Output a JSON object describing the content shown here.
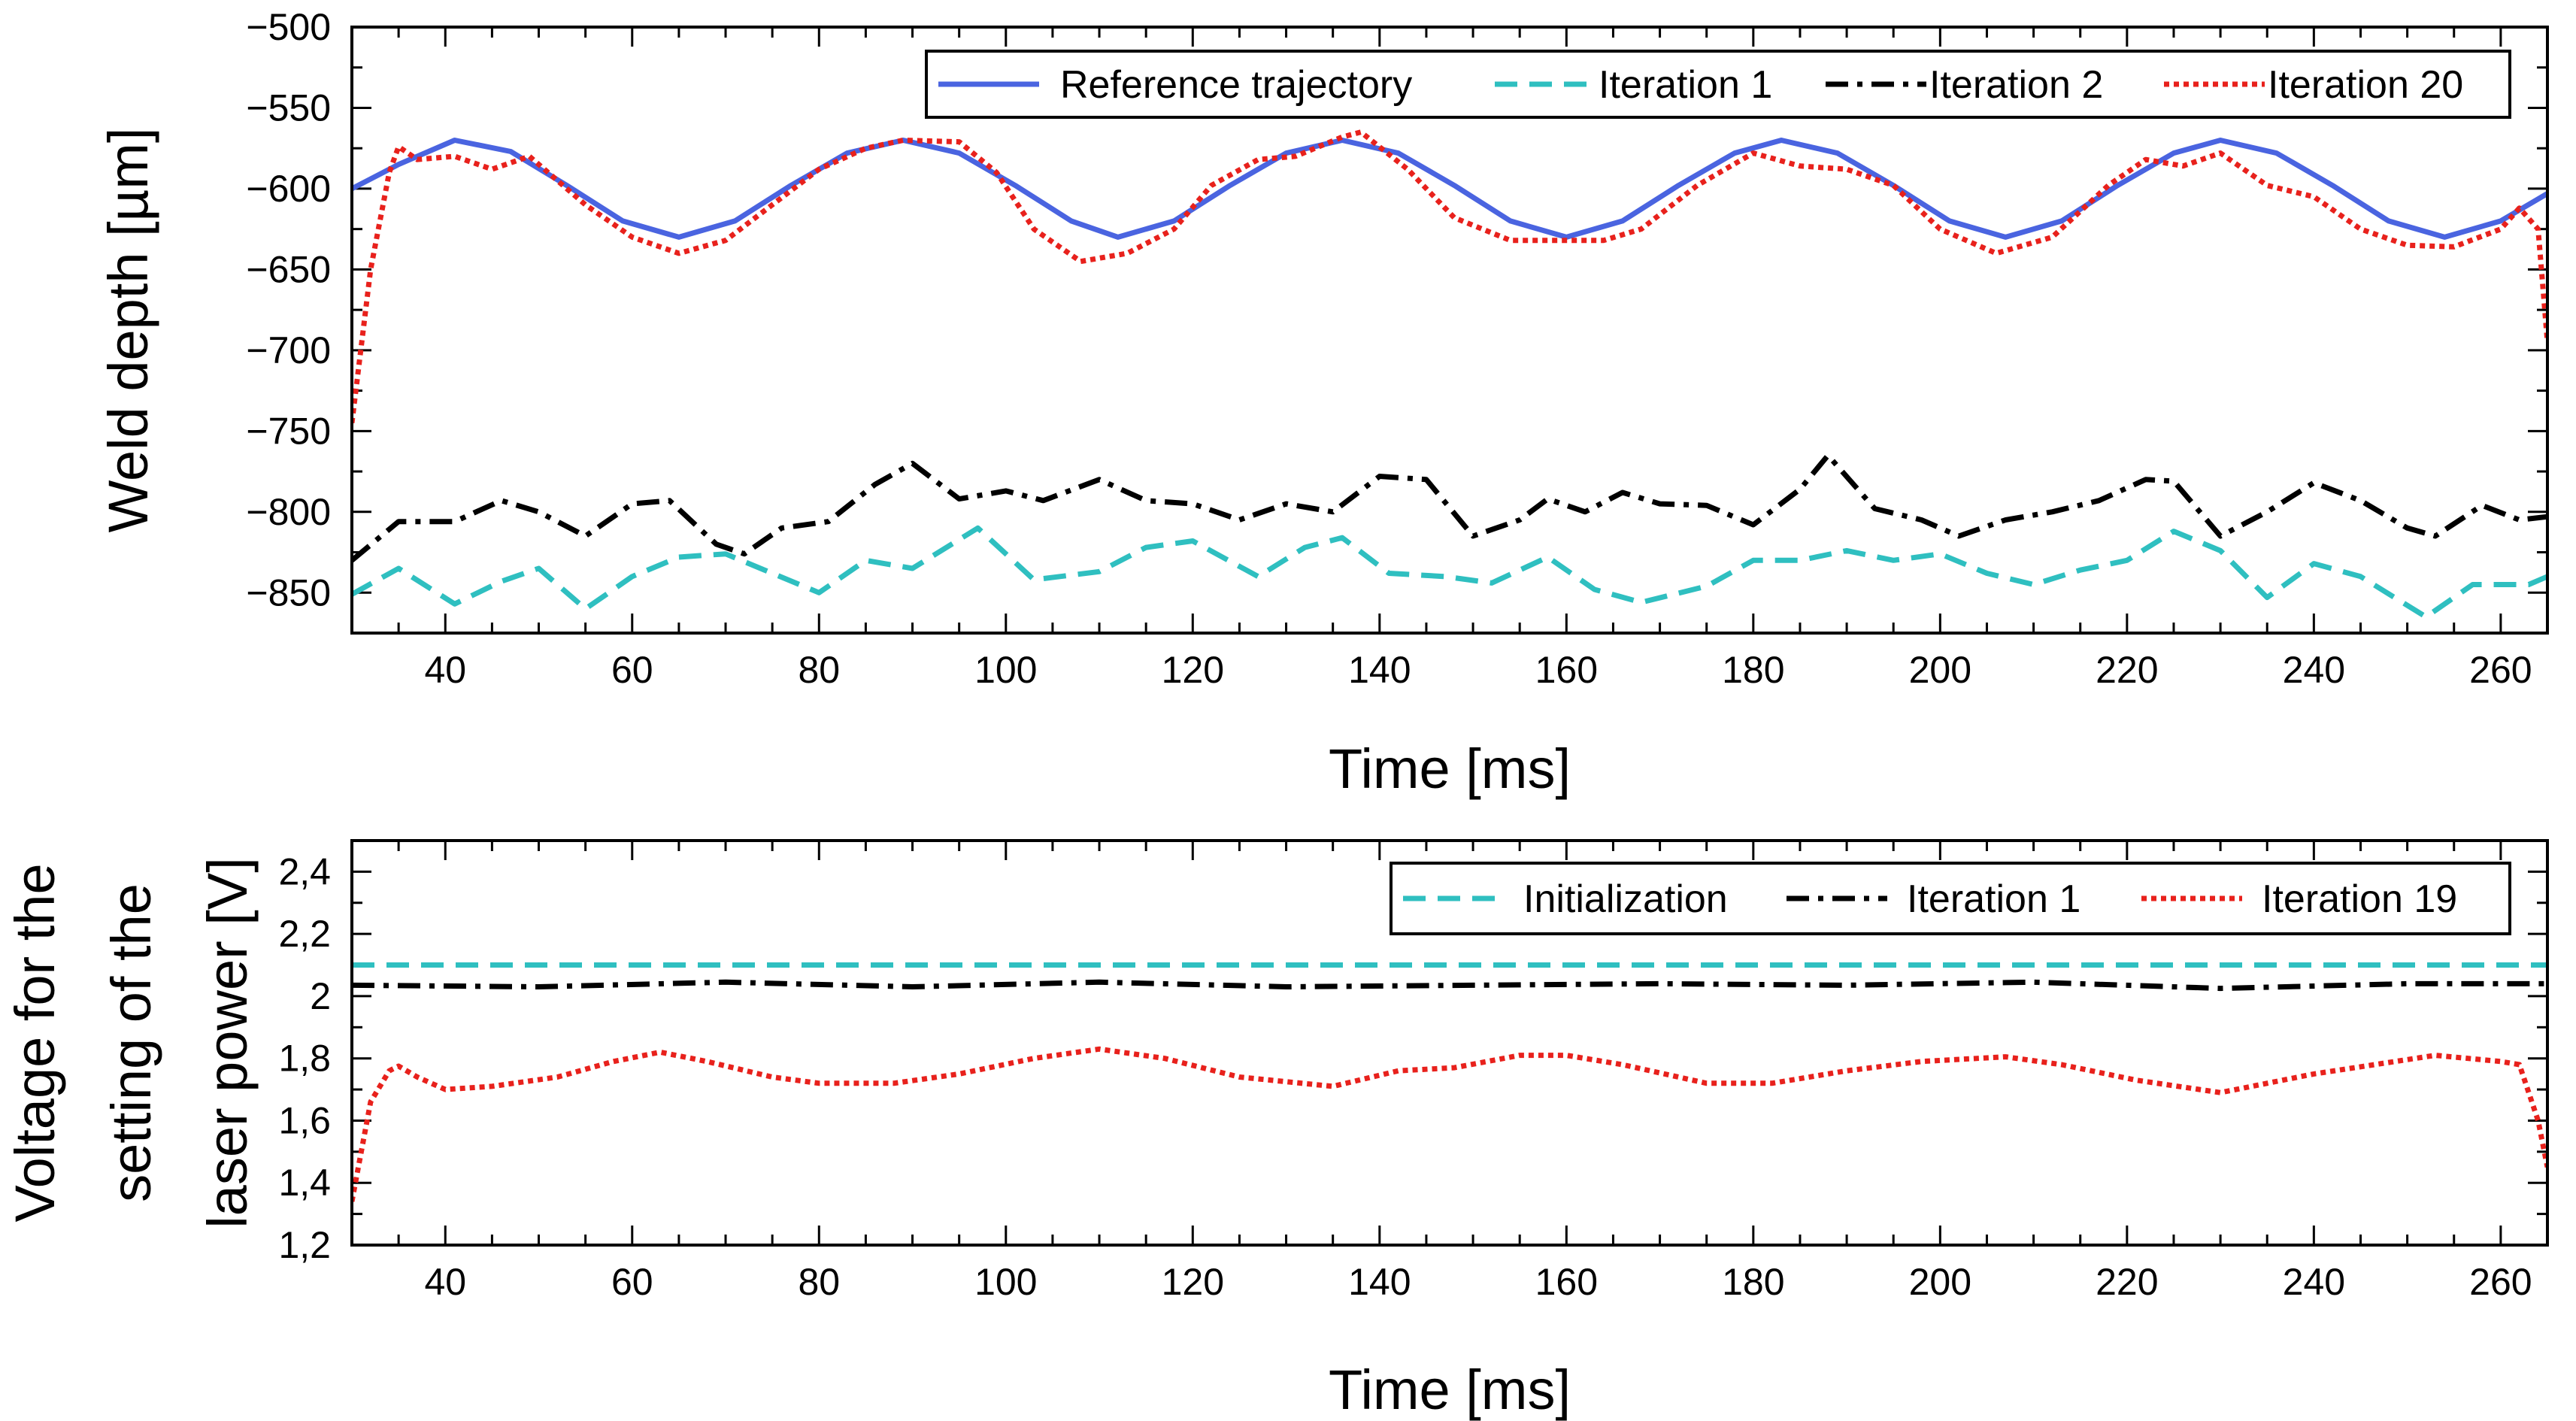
{
  "chart_data": [
    {
      "type": "line",
      "xlabel": "Time [ms]",
      "ylabel": "Weld depth [µm]",
      "xlim": [
        30,
        265
      ],
      "ylim": [
        -875,
        -500
      ],
      "xticks": [
        40,
        60,
        80,
        100,
        120,
        140,
        160,
        180,
        200,
        220,
        240,
        260
      ],
      "yticks": [
        -500,
        -550,
        -600,
        -650,
        -700,
        -750,
        -800,
        -850
      ],
      "ytick_labels": [
        "−500",
        "−550",
        "−600",
        "−650",
        "−700",
        "−750",
        "−800",
        "−850"
      ],
      "legend_position": "top-right",
      "series": [
        {
          "name": "Reference trajectory",
          "color": "#4a64e0",
          "style": "solid",
          "points": [
            [
              30,
              -600
            ],
            [
              35,
              -585
            ],
            [
              41,
              -570
            ],
            [
              47,
              -577
            ],
            [
              53,
              -598
            ],
            [
              59,
              -620
            ],
            [
              65,
              -630
            ],
            [
              71,
              -620
            ],
            [
              77,
              -598
            ],
            [
              83,
              -578
            ],
            [
              89,
              -570
            ],
            [
              95,
              -578
            ],
            [
              101,
              -598
            ],
            [
              107,
              -620
            ],
            [
              112,
              -630
            ],
            [
              118,
              -620
            ],
            [
              124,
              -598
            ],
            [
              130,
              -578
            ],
            [
              136,
              -570
            ],
            [
              142,
              -578
            ],
            [
              148,
              -598
            ],
            [
              154,
              -620
            ],
            [
              160,
              -630
            ],
            [
              166,
              -620
            ],
            [
              172,
              -598
            ],
            [
              178,
              -578
            ],
            [
              183,
              -570
            ],
            [
              189,
              -578
            ],
            [
              195,
              -598
            ],
            [
              201,
              -620
            ],
            [
              207,
              -630
            ],
            [
              213,
              -620
            ],
            [
              219,
              -598
            ],
            [
              225,
              -578
            ],
            [
              230,
              -570
            ],
            [
              236,
              -578
            ],
            [
              242,
              -598
            ],
            [
              248,
              -620
            ],
            [
              254,
              -630
            ],
            [
              260,
              -620
            ],
            [
              265,
              -603
            ]
          ]
        },
        {
          "name": "Iteration 1",
          "color": "#2fbfc0",
          "style": "dashed",
          "points": [
            [
              30,
              -851
            ],
            [
              35,
              -835
            ],
            [
              41,
              -857
            ],
            [
              46,
              -843
            ],
            [
              50,
              -835
            ],
            [
              55,
              -860
            ],
            [
              60,
              -840
            ],
            [
              65,
              -828
            ],
            [
              70,
              -826
            ],
            [
              75,
              -838
            ],
            [
              80,
              -850
            ],
            [
              85,
              -830
            ],
            [
              90,
              -835
            ],
            [
              97,
              -810
            ],
            [
              103,
              -842
            ],
            [
              110,
              -837
            ],
            [
              115,
              -822
            ],
            [
              120,
              -818
            ],
            [
              127,
              -840
            ],
            [
              132,
              -822
            ],
            [
              136,
              -816
            ],
            [
              141,
              -838
            ],
            [
              147,
              -840
            ],
            [
              152,
              -844
            ],
            [
              158,
              -828
            ],
            [
              163,
              -848
            ],
            [
              168,
              -856
            ],
            [
              175,
              -846
            ],
            [
              180,
              -830
            ],
            [
              185,
              -830
            ],
            [
              190,
              -824
            ],
            [
              195,
              -830
            ],
            [
              200,
              -826
            ],
            [
              205,
              -838
            ],
            [
              210,
              -845
            ],
            [
              215,
              -836
            ],
            [
              220,
              -830
            ],
            [
              225,
              -812
            ],
            [
              230,
              -824
            ],
            [
              235,
              -853
            ],
            [
              240,
              -832
            ],
            [
              245,
              -840
            ],
            [
              252,
              -865
            ],
            [
              257,
              -845
            ],
            [
              263,
              -845
            ],
            [
              265,
              -840
            ]
          ]
        },
        {
          "name": "Iteration 2",
          "color": "#000000",
          "style": "dashdot",
          "points": [
            [
              30,
              -830
            ],
            [
              35,
              -806
            ],
            [
              41,
              -806
            ],
            [
              46,
              -793
            ],
            [
              50,
              -800
            ],
            [
              55,
              -815
            ],
            [
              60,
              -795
            ],
            [
              64,
              -793
            ],
            [
              69,
              -820
            ],
            [
              72,
              -826
            ],
            [
              76,
              -810
            ],
            [
              81,
              -806
            ],
            [
              86,
              -783
            ],
            [
              90,
              -770
            ],
            [
              95,
              -792
            ],
            [
              100,
              -787
            ],
            [
              104,
              -793
            ],
            [
              110,
              -780
            ],
            [
              115,
              -793
            ],
            [
              120,
              -795
            ],
            [
              125,
              -805
            ],
            [
              130,
              -795
            ],
            [
              135,
              -800
            ],
            [
              140,
              -778
            ],
            [
              145,
              -780
            ],
            [
              150,
              -815
            ],
            [
              155,
              -805
            ],
            [
              158,
              -792
            ],
            [
              162,
              -800
            ],
            [
              166,
              -788
            ],
            [
              170,
              -795
            ],
            [
              175,
              -796
            ],
            [
              180,
              -808
            ],
            [
              185,
              -786
            ],
            [
              188,
              -765
            ],
            [
              193,
              -798
            ],
            [
              198,
              -805
            ],
            [
              202,
              -815
            ],
            [
              207,
              -805
            ],
            [
              212,
              -800
            ],
            [
              217,
              -793
            ],
            [
              222,
              -780
            ],
            [
              225,
              -781
            ],
            [
              230,
              -815
            ],
            [
              235,
              -800
            ],
            [
              240,
              -782
            ],
            [
              245,
              -793
            ],
            [
              250,
              -810
            ],
            [
              253,
              -815
            ],
            [
              258,
              -796
            ],
            [
              262,
              -805
            ],
            [
              265,
              -803
            ]
          ]
        },
        {
          "name": "Iteration 20",
          "color": "#e8211c",
          "style": "dotted",
          "points": [
            [
              30,
              -745
            ],
            [
              32,
              -650
            ],
            [
              34,
              -590
            ],
            [
              35,
              -574
            ],
            [
              37,
              -582
            ],
            [
              41,
              -580
            ],
            [
              45,
              -588
            ],
            [
              49,
              -580
            ],
            [
              55,
              -610
            ],
            [
              60,
              -630
            ],
            [
              65,
              -640
            ],
            [
              70,
              -632
            ],
            [
              75,
              -610
            ],
            [
              80,
              -588
            ],
            [
              85,
              -575
            ],
            [
              89,
              -570
            ],
            [
              95,
              -571
            ],
            [
              99,
              -590
            ],
            [
              103,
              -625
            ],
            [
              108,
              -645
            ],
            [
              113,
              -640
            ],
            [
              118,
              -625
            ],
            [
              122,
              -598
            ],
            [
              127,
              -582
            ],
            [
              131,
              -580
            ],
            [
              136,
              -568
            ],
            [
              138,
              -565
            ],
            [
              143,
              -588
            ],
            [
              148,
              -618
            ],
            [
              154,
              -632
            ],
            [
              158,
              -632
            ],
            [
              164,
              -632
            ],
            [
              168,
              -625
            ],
            [
              174,
              -598
            ],
            [
              180,
              -578
            ],
            [
              185,
              -586
            ],
            [
              190,
              -588
            ],
            [
              195,
              -598
            ],
            [
              200,
              -625
            ],
            [
              206,
              -640
            ],
            [
              212,
              -630
            ],
            [
              218,
              -598
            ],
            [
              222,
              -582
            ],
            [
              226,
              -586
            ],
            [
              230,
              -578
            ],
            [
              235,
              -598
            ],
            [
              240,
              -605
            ],
            [
              245,
              -625
            ],
            [
              250,
              -635
            ],
            [
              255,
              -636
            ],
            [
              260,
              -625
            ],
            [
              262,
              -612
            ],
            [
              264,
              -625
            ],
            [
              265,
              -695
            ]
          ]
        }
      ]
    },
    {
      "type": "line",
      "xlabel": "Time [ms]",
      "ylabel": "Voltage for the setting of the laser power [V]",
      "ylabel_lines": [
        "Voltage for the",
        "setting of the",
        "laser power [V]"
      ],
      "xlim": [
        30,
        265
      ],
      "ylim": [
        1.2,
        2.5
      ],
      "xticks": [
        40,
        60,
        80,
        100,
        120,
        140,
        160,
        180,
        200,
        220,
        240,
        260
      ],
      "yticks": [
        1.2,
        1.4,
        1.6,
        1.8,
        2.0,
        2.2,
        2.4
      ],
      "ytick_labels": [
        "1,2",
        "1,4",
        "1,6",
        "1,8",
        "2",
        "2,2",
        "2,4"
      ],
      "legend_position": "top-right",
      "series": [
        {
          "name": "Initialization",
          "color": "#2fbfc0",
          "style": "dashed",
          "points": [
            [
              30,
              2.1
            ],
            [
              265,
              2.1
            ]
          ]
        },
        {
          "name": "Iteration 1",
          "color": "#000000",
          "style": "dashdot",
          "points": [
            [
              30,
              2.035
            ],
            [
              50,
              2.03
            ],
            [
              70,
              2.045
            ],
            [
              90,
              2.03
            ],
            [
              110,
              2.045
            ],
            [
              130,
              2.03
            ],
            [
              150,
              2.035
            ],
            [
              170,
              2.04
            ],
            [
              190,
              2.035
            ],
            [
              210,
              2.045
            ],
            [
              230,
              2.025
            ],
            [
              250,
              2.04
            ],
            [
              265,
              2.04
            ]
          ]
        },
        {
          "name": "Iteration 19",
          "color": "#e8211c",
          "style": "dotted",
          "points": [
            [
              30,
              1.34
            ],
            [
              32,
              1.66
            ],
            [
              34,
              1.76
            ],
            [
              35,
              1.775
            ],
            [
              37,
              1.74
            ],
            [
              40,
              1.7
            ],
            [
              45,
              1.71
            ],
            [
              52,
              1.74
            ],
            [
              58,
              1.79
            ],
            [
              63,
              1.82
            ],
            [
              68,
              1.79
            ],
            [
              75,
              1.74
            ],
            [
              80,
              1.72
            ],
            [
              88,
              1.72
            ],
            [
              95,
              1.75
            ],
            [
              103,
              1.8
            ],
            [
              110,
              1.83
            ],
            [
              117,
              1.8
            ],
            [
              125,
              1.74
            ],
            [
              135,
              1.71
            ],
            [
              142,
              1.76
            ],
            [
              148,
              1.77
            ],
            [
              155,
              1.81
            ],
            [
              160,
              1.81
            ],
            [
              166,
              1.78
            ],
            [
              175,
              1.72
            ],
            [
              182,
              1.72
            ],
            [
              190,
              1.76
            ],
            [
              198,
              1.79
            ],
            [
              207,
              1.805
            ],
            [
              213,
              1.78
            ],
            [
              221,
              1.73
            ],
            [
              230,
              1.69
            ],
            [
              240,
              1.75
            ],
            [
              253,
              1.81
            ],
            [
              260,
              1.79
            ],
            [
              262,
              1.78
            ],
            [
              264,
              1.6
            ],
            [
              265,
              1.45
            ]
          ]
        }
      ]
    }
  ]
}
